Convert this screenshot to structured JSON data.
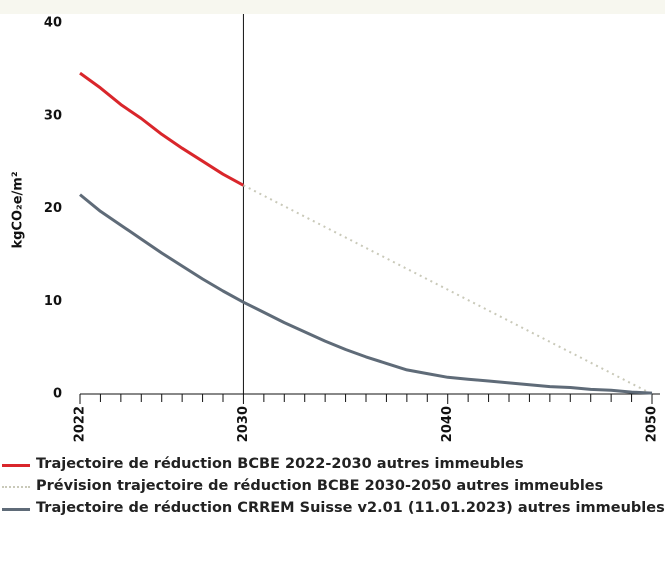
{
  "chart_data": {
    "type": "line",
    "y_label": "kgCO₂e/m²",
    "xlim": [
      2022,
      2050
    ],
    "xticks": [
      2022,
      2030,
      2040,
      2050
    ],
    "xminorticks": [
      2023,
      2024,
      2025,
      2026,
      2027,
      2028,
      2029,
      2031,
      2032,
      2033,
      2034,
      2035,
      2036,
      2037,
      2038,
      2039,
      2041,
      2042,
      2043,
      2044,
      2045,
      2046,
      2047,
      2048,
      2049
    ],
    "ylim": [
      0,
      40
    ],
    "yticks": [
      0,
      10,
      20,
      30,
      40
    ],
    "vline": 2030,
    "series": [
      {
        "name": "Trajectoire de réduction BCBE 2022-2030 autres immeubles",
        "color": "#d9262b",
        "dash": "solid",
        "x": [
          2022,
          2023,
          2024,
          2025,
          2026,
          2027,
          2028,
          2029,
          2030
        ],
        "values": [
          34.6,
          33.0,
          31.2,
          29.7,
          28.0,
          26.5,
          25.1,
          23.7,
          22.5
        ]
      },
      {
        "name": "Prévision trajectoire de réduction BCBE 2030-2050 autres immeubles",
        "color": "#c9c9b9",
        "dash": "dotted",
        "x": [
          2030,
          2050
        ],
        "values": [
          22.5,
          0
        ]
      },
      {
        "name": "Trajectoire de réduction CRREM Suisse v2.01 (11.01.2023) autres immeubles",
        "color": "#5f6b78",
        "dash": "solid",
        "x": [
          2022,
          2023,
          2024,
          2025,
          2026,
          2027,
          2028,
          2029,
          2030,
          2031,
          2032,
          2033,
          2034,
          2035,
          2036,
          2037,
          2038,
          2039,
          2040,
          2041,
          2042,
          2043,
          2044,
          2045,
          2046,
          2047,
          2048,
          2049,
          2050
        ],
        "values": [
          21.5,
          19.7,
          18.2,
          16.7,
          15.2,
          13.8,
          12.4,
          11.1,
          9.9,
          8.8,
          7.7,
          6.7,
          5.7,
          4.8,
          4.0,
          3.3,
          2.6,
          2.2,
          1.8,
          1.6,
          1.4,
          1.2,
          1.0,
          0.8,
          0.7,
          0.5,
          0.4,
          0.2,
          0.1
        ]
      }
    ]
  }
}
